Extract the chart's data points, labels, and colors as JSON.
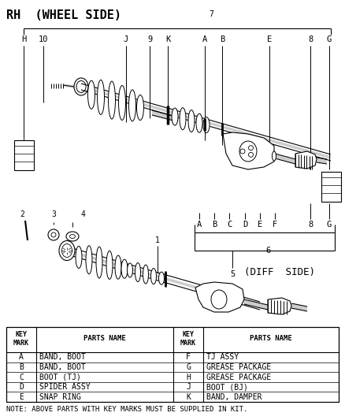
{
  "title": "RH  (WHEEL SIDE)",
  "diff_side_label": "(DIFF  SIDE)",
  "note": "NOTE: ABOVE PARTS WITH KEY MARKS MUST BE SUPPLIED IN KIT.",
  "table_data": {
    "rows_left": [
      [
        "A",
        "BAND, BOOT"
      ],
      [
        "B",
        "BAND, BOOT"
      ],
      [
        "C",
        "BOOT (TJ)"
      ],
      [
        "D",
        "SPIDER ASSY"
      ],
      [
        "E",
        "SNAP RING"
      ]
    ],
    "rows_right": [
      [
        "F",
        "TJ ASSY"
      ],
      [
        "G",
        "GREASE PACKAGE"
      ],
      [
        "H",
        "GREASE PACKAGE"
      ],
      [
        "J",
        "BOOT (BJ)"
      ],
      [
        "K",
        "BAND, DAMPER"
      ]
    ]
  },
  "bg_color": "#ffffff",
  "line_color": "#000000",
  "text_color": "#000000"
}
